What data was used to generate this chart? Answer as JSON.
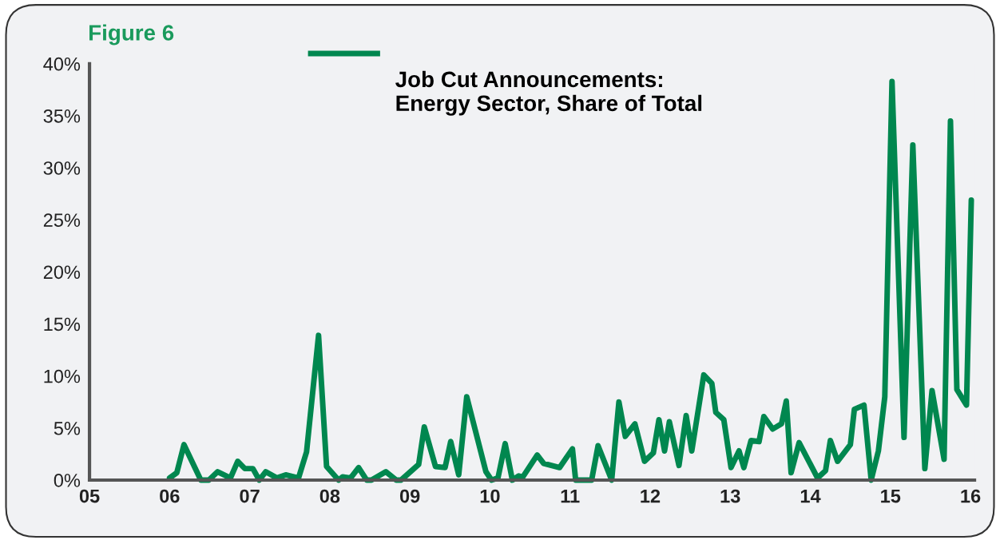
{
  "chart_data": {
    "type": "line",
    "title": "Figure 6",
    "x": [
      2006.0,
      2006.09,
      2006.18,
      2006.39,
      2006.49,
      2006.6,
      2006.76,
      2006.85,
      2006.94,
      2007.04,
      2007.12,
      2007.2,
      2007.34,
      2007.45,
      2007.61,
      2007.71,
      2007.86,
      2007.96,
      2008.11,
      2008.16,
      2008.26,
      2008.36,
      2008.46,
      2008.52,
      2008.7,
      2008.83,
      2008.89,
      2009.11,
      2009.18,
      2009.32,
      2009.44,
      2009.51,
      2009.61,
      2009.71,
      2009.95,
      2010.02,
      2010.1,
      2010.19,
      2010.28,
      2010.36,
      2010.41,
      2010.59,
      2010.67,
      2010.87,
      2011.03,
      2011.07,
      2011.27,
      2011.35,
      2011.52,
      2011.61,
      2011.69,
      2011.81,
      2011.93,
      2012.04,
      2012.11,
      2012.18,
      2012.24,
      2012.36,
      2012.45,
      2012.52,
      2012.67,
      2012.77,
      2012.82,
      2012.92,
      2013.01,
      2013.11,
      2013.17,
      2013.26,
      2013.36,
      2013.42,
      2013.53,
      2013.64,
      2013.7,
      2013.76,
      2013.86,
      2014.09,
      2014.19,
      2014.25,
      2014.34,
      2014.5,
      2014.55,
      2014.67,
      2014.76,
      2014.85,
      2014.93,
      2015.02,
      2015.17,
      2015.28,
      2015.43,
      2015.52,
      2015.67,
      2015.75,
      2015.83,
      2015.95,
      2016.01
    ],
    "series": [
      {
        "name": "Job Cut Announcements:\nEnergy Sector, Share of Total",
        "color": "#00874f",
        "values": [
          0.2,
          0.7,
          3.4,
          0,
          0,
          0.8,
          0.2,
          1.8,
          1.1,
          1.1,
          0,
          0.8,
          0.2,
          0.5,
          0.2,
          2.7,
          13.9,
          1.3,
          0,
          0.3,
          0.2,
          1.2,
          0,
          0,
          0.8,
          0,
          0,
          1.5,
          5.1,
          1.3,
          1.2,
          3.7,
          0.5,
          8.0,
          0.8,
          0,
          0.2,
          3.5,
          0,
          0.4,
          0.3,
          2.4,
          1.6,
          1.2,
          3.0,
          0,
          0,
          3.3,
          0,
          7.5,
          4.2,
          5.4,
          1.8,
          2.6,
          5.8,
          2.8,
          5.6,
          1.4,
          6.2,
          2.8,
          10.1,
          9.3,
          6.5,
          5.8,
          1.2,
          2.8,
          1.2,
          3.8,
          3.7,
          6.1,
          4.9,
          5.4,
          7.6,
          0.7,
          3.6,
          0.2,
          0.9,
          3.8,
          1.8,
          3.4,
          6.8,
          7.2,
          0,
          2.8,
          8.0,
          38.3,
          4.1,
          32.2,
          1.1,
          8.6,
          2.0,
          34.5,
          8.7,
          7.2,
          26.9
        ]
      }
    ],
    "xlim": [
      2005,
      2016.05
    ],
    "xticks": [
      {
        "value": 2005,
        "label": "05"
      },
      {
        "value": 2006,
        "label": "06"
      },
      {
        "value": 2007,
        "label": "07"
      },
      {
        "value": 2008,
        "label": "08"
      },
      {
        "value": 2009,
        "label": "09"
      },
      {
        "value": 2010,
        "label": "10"
      },
      {
        "value": 2011,
        "label": "11"
      },
      {
        "value": 2012,
        "label": "12"
      },
      {
        "value": 2013,
        "label": "13"
      },
      {
        "value": 2014,
        "label": "14"
      },
      {
        "value": 2015,
        "label": "15"
      },
      {
        "value": 2016,
        "label": "16"
      }
    ],
    "ylim": [
      0,
      40
    ],
    "yticks": [
      {
        "value": 0,
        "label": "0%"
      },
      {
        "value": 5,
        "label": "5%"
      },
      {
        "value": 10,
        "label": "10%"
      },
      {
        "value": 15,
        "label": "15%"
      },
      {
        "value": 20,
        "label": "20%"
      },
      {
        "value": 25,
        "label": "25%"
      },
      {
        "value": 30,
        "label": "30%"
      },
      {
        "value": 35,
        "label": "35%"
      },
      {
        "value": 40,
        "label": "40%"
      }
    ],
    "grid": false,
    "legend": "top",
    "line_style": "solid",
    "marker": "none"
  }
}
